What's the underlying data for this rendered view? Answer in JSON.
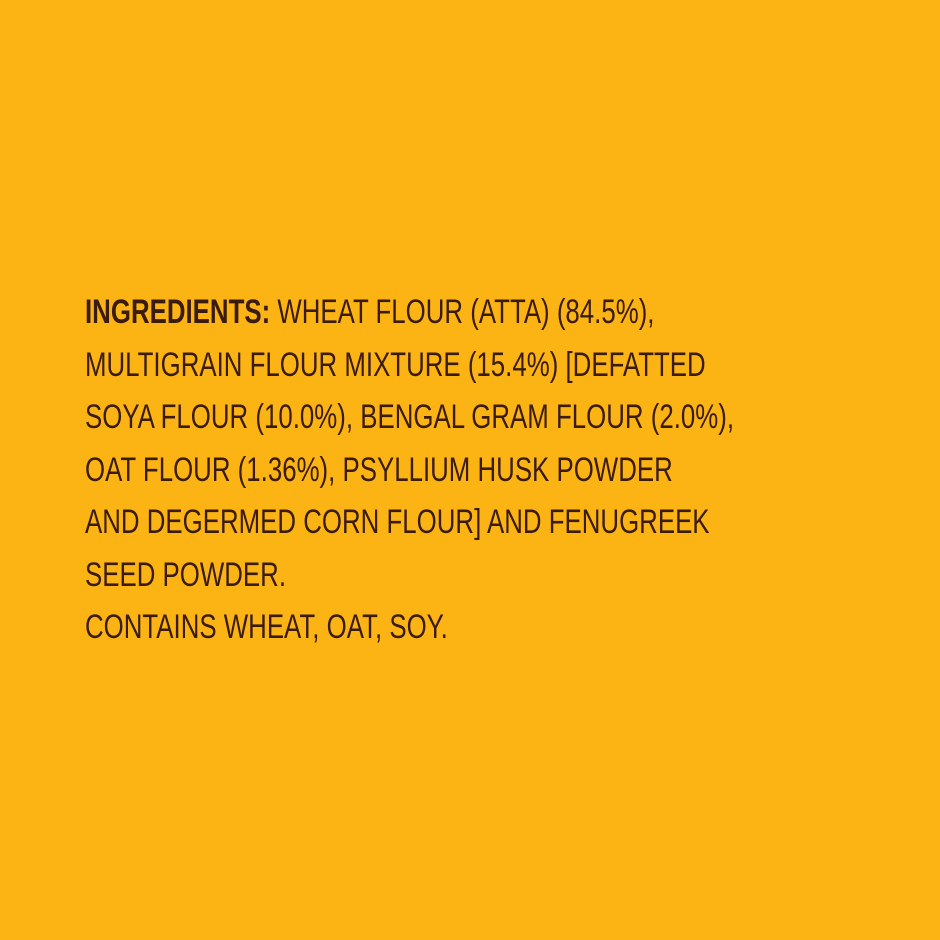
{
  "ingredients": {
    "label": "INGREDIENTS:",
    "lines": [
      "WHEAT FLOUR (ATTA) (84.5%),",
      "MULTIGRAIN FLOUR MIXTURE (15.4%) [DEFATTED",
      "SOYA FLOUR (10.0%), BENGAL GRAM FLOUR (2.0%),",
      "OAT FLOUR (1.36%), PSYLLIUM HUSK POWDER",
      "AND DEGERMED CORN FLOUR] AND FENUGREEK",
      "SEED POWDER."
    ],
    "allergens": "CONTAINS WHEAT, OAT, SOY."
  }
}
